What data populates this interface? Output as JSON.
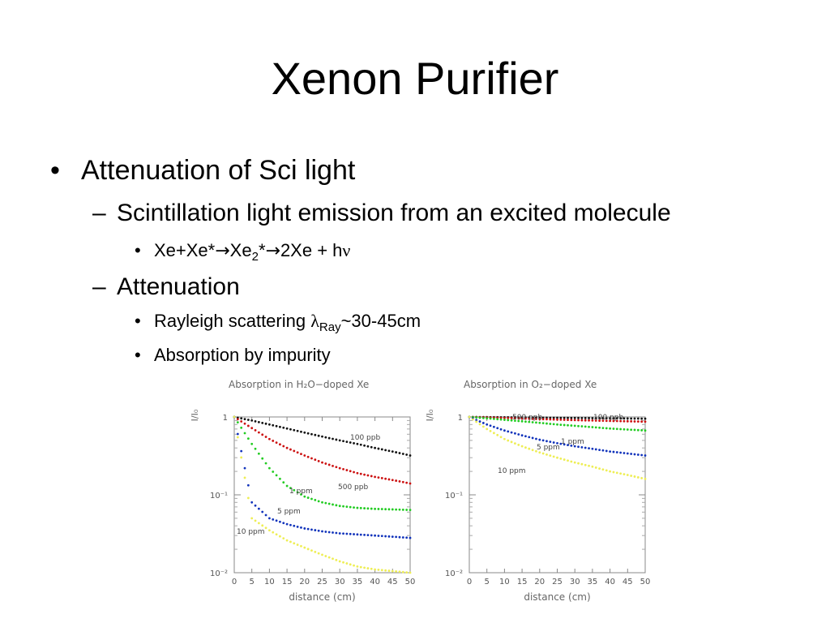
{
  "slide": {
    "title": "Xenon Purifier",
    "bullets": {
      "b1": {
        "marker": "•",
        "text": "Attenuation of Sci light"
      },
      "b2": {
        "marker": "–",
        "text": "Scintillation light emission from an excited molecule"
      },
      "b3": {
        "marker": "•",
        "part1": "Xe+Xe*",
        "arrow": "→",
        "part2": "Xe",
        "sub": "2",
        "part3": "*",
        "part4": "2Xe + h",
        "greek": "ν"
      },
      "b4": {
        "marker": "–",
        "text": "Attenuation"
      },
      "b5": {
        "marker": "•",
        "text": "Rayleigh scattering ",
        "greek": "λ",
        "sub": "Ray",
        "after": "~30-45cm"
      },
      "b6": {
        "marker": "•",
        "text": "Absorption by impurity"
      }
    }
  },
  "chart_data": [
    {
      "type": "scatter",
      "title": "Absorption in H₂O−doped Xe",
      "ylabel": "I/I₀",
      "xlabel": "distance (cm)",
      "yscale": "log",
      "xlim": [
        0,
        50
      ],
      "ylim": [
        0.01,
        1
      ],
      "x_ticks": [
        "0",
        "5",
        "10",
        "15",
        "20",
        "25",
        "30",
        "35",
        "40",
        "45",
        "50"
      ],
      "y_ticks": [
        "10⁻²",
        "10⁻¹",
        "1"
      ],
      "series": [
        {
          "name": "100 ppb",
          "color": "#111111",
          "x": [
            0,
            5,
            10,
            15,
            20,
            25,
            30,
            35,
            40,
            45,
            50
          ],
          "y": [
            1.0,
            0.9,
            0.8,
            0.71,
            0.63,
            0.56,
            0.5,
            0.45,
            0.4,
            0.36,
            0.32
          ]
        },
        {
          "name": "500 ppb",
          "color": "#cc1111",
          "x": [
            0,
            5,
            10,
            15,
            20,
            25,
            30,
            35,
            40,
            45,
            50
          ],
          "y": [
            1.0,
            0.72,
            0.52,
            0.4,
            0.32,
            0.26,
            0.22,
            0.19,
            0.17,
            0.155,
            0.14
          ]
        },
        {
          "name": "1 ppm",
          "color": "#22cc22",
          "x": [
            0,
            5,
            10,
            15,
            20,
            25,
            30,
            35,
            40,
            45,
            50
          ],
          "y": [
            1.0,
            0.45,
            0.22,
            0.13,
            0.095,
            0.08,
            0.072,
            0.068,
            0.066,
            0.065,
            0.064
          ]
        },
        {
          "name": "5 ppm",
          "color": "#1133bb",
          "x": [
            0,
            5,
            10,
            15,
            20,
            25,
            30,
            35,
            40,
            45,
            50
          ],
          "y": [
            1.0,
            0.08,
            0.05,
            0.042,
            0.037,
            0.034,
            0.032,
            0.031,
            0.03,
            0.029,
            0.028
          ]
        },
        {
          "name": "10 ppm",
          "color": "#eeee55",
          "x": [
            0,
            5,
            10,
            15,
            20,
            25,
            30,
            35,
            40,
            45,
            50
          ],
          "y": [
            1.0,
            0.05,
            0.035,
            0.026,
            0.021,
            0.017,
            0.014,
            0.012,
            0.011,
            0.0105,
            0.01
          ]
        }
      ],
      "legend": "labels placed next to each series"
    },
    {
      "type": "scatter",
      "title": "Absorption in O₂−doped Xe",
      "ylabel": "I/I₀",
      "xlabel": "distance (cm)",
      "yscale": "log",
      "xlim": [
        0,
        50
      ],
      "ylim": [
        0.01,
        1
      ],
      "x_ticks": [
        "0",
        "5",
        "10",
        "15",
        "20",
        "25",
        "30",
        "35",
        "40",
        "45",
        "50"
      ],
      "y_ticks": [
        "10⁻²",
        "10⁻¹",
        "1"
      ],
      "series": [
        {
          "name": "100 ppb",
          "color": "#111111",
          "x": [
            0,
            5,
            10,
            15,
            20,
            25,
            30,
            35,
            40,
            45,
            50
          ],
          "y": [
            1.0,
            0.995,
            0.99,
            0.985,
            0.98,
            0.975,
            0.97,
            0.965,
            0.96,
            0.955,
            0.95
          ]
        },
        {
          "name": "500 ppb",
          "color": "#cc1111",
          "x": [
            0,
            5,
            10,
            15,
            20,
            25,
            30,
            35,
            40,
            45,
            50
          ],
          "y": [
            1.0,
            0.985,
            0.97,
            0.955,
            0.94,
            0.925,
            0.91,
            0.9,
            0.89,
            0.88,
            0.87
          ]
        },
        {
          "name": "1 ppm",
          "color": "#22cc22",
          "x": [
            0,
            5,
            10,
            15,
            20,
            25,
            30,
            35,
            40,
            45,
            50
          ],
          "y": [
            1.0,
            0.96,
            0.92,
            0.88,
            0.84,
            0.8,
            0.77,
            0.74,
            0.71,
            0.69,
            0.67
          ]
        },
        {
          "name": "5 ppm",
          "color": "#1133bb",
          "x": [
            0,
            5,
            10,
            15,
            20,
            25,
            30,
            35,
            40,
            45,
            50
          ],
          "y": [
            1.0,
            0.8,
            0.67,
            0.58,
            0.51,
            0.46,
            0.42,
            0.39,
            0.36,
            0.34,
            0.32
          ]
        },
        {
          "name": "10 ppm",
          "color": "#eeee55",
          "x": [
            0,
            5,
            10,
            15,
            20,
            25,
            30,
            35,
            40,
            45,
            50
          ],
          "y": [
            1.0,
            0.7,
            0.52,
            0.42,
            0.35,
            0.3,
            0.26,
            0.23,
            0.2,
            0.18,
            0.16
          ]
        }
      ],
      "legend": "labels placed next to each series"
    }
  ]
}
